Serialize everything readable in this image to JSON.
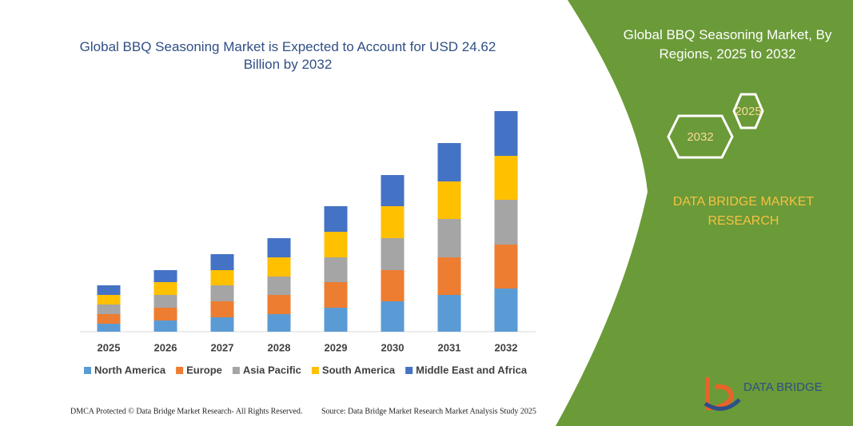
{
  "chart_data": {
    "type": "bar",
    "stacked": true,
    "title": "Global BBQ Seasoning Market is Expected to Account for USD 24.62 Billion by 2032",
    "categories": [
      "2025",
      "2026",
      "2027",
      "2028",
      "2029",
      "2030",
      "2031",
      "2032"
    ],
    "series": [
      {
        "name": "North America",
        "color": "#5b9bd5",
        "values": [
          10,
          14,
          18,
          22,
          30,
          38,
          46,
          54
        ]
      },
      {
        "name": "Europe",
        "color": "#ed7d31",
        "values": [
          12,
          16,
          20,
          24,
          32,
          39,
          47,
          55
        ]
      },
      {
        "name": "Asia Pacific",
        "color": "#a5a5a5",
        "values": [
          12,
          16,
          20,
          23,
          31,
          40,
          48,
          56
        ]
      },
      {
        "name": "South America",
        "color": "#ffc000",
        "values": [
          12,
          16,
          19,
          24,
          32,
          40,
          47,
          55
        ]
      },
      {
        "name": "Middle East and Africa",
        "color": "#4472c4",
        "values": [
          12,
          15,
          20,
          24,
          32,
          39,
          48,
          56
        ]
      }
    ],
    "legend": "bottom"
  },
  "panel": {
    "title": "Global BBQ Seasoning Market, By Regions, 2025 to 2032",
    "hexagon_labels": [
      "2025",
      "2032"
    ],
    "brand": "DATA BRIDGE MARKET RESEARCH",
    "logo": "DATA BRIDGE"
  },
  "footer": {
    "left": "DMCA Protected © Data Bridge Market Research-  All Rights Reserved.",
    "right": "Source: Data Bridge Market Research  Market Analysis Study 2025"
  }
}
